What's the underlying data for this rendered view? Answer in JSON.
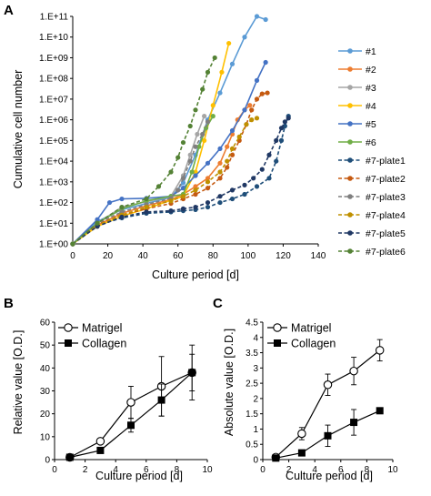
{
  "panel_letters": [
    "A",
    "B",
    "C"
  ],
  "chart_data": [
    {
      "panel": "A",
      "type": "line",
      "xlabel": "Culture period [d]",
      "ylabel": "Cumulative cell number",
      "xlim": [
        0,
        140
      ],
      "xticks": [
        "0",
        "20",
        "40",
        "60",
        "80",
        "100",
        "120",
        "140"
      ],
      "y_scale": "log10",
      "ylim": [
        1,
        100000000000
      ],
      "yticks": [
        "1.E+00",
        "1.E+01",
        "1.E+02",
        "1.E+03",
        "1.E+04",
        "1.E+05",
        "1.E+06",
        "1.E+07",
        "1.E+08",
        "1.E+09",
        "1.E+10",
        "1.E+11"
      ],
      "legend_position": "right",
      "series": [
        {
          "name": "#1",
          "color": "#5b9bd5",
          "dashed": false,
          "x": [
            0,
            14,
            28,
            42,
            56,
            63,
            70,
            77,
            84,
            91,
            98,
            105,
            110
          ],
          "y": [
            1,
            12,
            45,
            90,
            180,
            900,
            20000,
            1000000,
            20000000,
            500000000,
            10000000000,
            100000000000,
            70000000000
          ]
        },
        {
          "name": "#2",
          "color": "#ed7d31",
          "dashed": false,
          "x": [
            0,
            14,
            28,
            42,
            56,
            63,
            70,
            77,
            84,
            88,
            91,
            94,
            98,
            101
          ],
          "y": [
            1,
            8,
            30,
            70,
            140,
            250,
            600,
            1500,
            8000,
            50000,
            200000,
            1000000,
            3000000,
            5000000
          ]
        },
        {
          "name": "#3",
          "color": "#a5a5a5",
          "dashed": false,
          "x": [
            0,
            14,
            28,
            42,
            56,
            63,
            67,
            71,
            75
          ],
          "y": [
            1,
            10,
            60,
            110,
            200,
            2000,
            20000,
            200000,
            1500000
          ]
        },
        {
          "name": "#4",
          "color": "#ffc000",
          "dashed": false,
          "x": [
            0,
            14,
            28,
            42,
            56,
            63,
            70,
            75,
            80,
            85,
            89
          ],
          "y": [
            1,
            7,
            22,
            50,
            130,
            200,
            3000,
            100000,
            5000000,
            200000000,
            5000000000
          ]
        },
        {
          "name": "#5",
          "color": "#4472c4",
          "dashed": false,
          "x": [
            0,
            14,
            21,
            28,
            42,
            56,
            63,
            70,
            77,
            84,
            91,
            98,
            105,
            110
          ],
          "y": [
            1,
            15,
            100,
            150,
            160,
            200,
            500,
            2000,
            8000,
            40000,
            300000,
            3000000,
            80000000,
            600000000
          ]
        },
        {
          "name": "#6",
          "color": "#70ad47",
          "dashed": false,
          "x": [
            0,
            14,
            28,
            42,
            56,
            63,
            68,
            72,
            76,
            80
          ],
          "y": [
            1,
            10,
            50,
            120,
            200,
            250,
            3000,
            50000,
            400000,
            1500000
          ]
        },
        {
          "name": "#7-plate1",
          "color": "#1f4e79",
          "dashed": true,
          "x": [
            0,
            14,
            28,
            42,
            56,
            63,
            70,
            77,
            84,
            91,
            98,
            105,
            112,
            116,
            119,
            121,
            123
          ],
          "y": [
            1,
            8,
            18,
            30,
            35,
            40,
            45,
            60,
            100,
            150,
            250,
            600,
            1500,
            10000,
            100000,
            500000,
            1500000
          ]
        },
        {
          "name": "#7-plate2",
          "color": "#c55a11",
          "dashed": true,
          "x": [
            0,
            14,
            28,
            42,
            56,
            63,
            70,
            77,
            84,
            88,
            91,
            95,
            99,
            102,
            105,
            108,
            111
          ],
          "y": [
            1,
            9,
            25,
            50,
            90,
            150,
            250,
            500,
            1500,
            5000,
            20000,
            100000,
            600000,
            3000000,
            10000000,
            18000000,
            20000000
          ]
        },
        {
          "name": "#7-plate3",
          "color": "#7f7f7f",
          "dashed": true,
          "x": [
            0,
            14,
            28,
            42,
            56,
            60,
            63,
            67,
            70,
            74,
            77
          ],
          "y": [
            1,
            10,
            35,
            80,
            160,
            400,
            1500,
            10000,
            50000,
            200000,
            800000
          ]
        },
        {
          "name": "#7-plate4",
          "color": "#bf9000",
          "dashed": true,
          "x": [
            0,
            14,
            28,
            42,
            56,
            63,
            70,
            77,
            84,
            88,
            91,
            95,
            99,
            102,
            105
          ],
          "y": [
            1,
            8,
            25,
            60,
            120,
            200,
            400,
            1000,
            3000,
            10000,
            40000,
            150000,
            600000,
            1000000,
            1200000
          ]
        },
        {
          "name": "#7-plate5",
          "color": "#203864",
          "dashed": true,
          "x": [
            0,
            14,
            28,
            42,
            56,
            63,
            70,
            77,
            84,
            91,
            98,
            103,
            108,
            112,
            116,
            119,
            121,
            123
          ],
          "y": [
            1,
            7,
            20,
            35,
            40,
            50,
            60,
            100,
            200,
            400,
            700,
            1500,
            4000,
            20000,
            100000,
            400000,
            800000,
            1200000
          ]
        },
        {
          "name": "#7-plate6",
          "color": "#548235",
          "dashed": true,
          "x": [
            0,
            14,
            28,
            42,
            49,
            56,
            60,
            63,
            67,
            70,
            74,
            77,
            81
          ],
          "y": [
            1,
            10,
            60,
            150,
            600,
            3000,
            15000,
            80000,
            500000,
            3000000,
            30000000,
            200000000,
            1000000000
          ]
        }
      ]
    },
    {
      "panel": "B",
      "type": "line",
      "xlabel": "Culture period [d]",
      "ylabel": "Relative value [O.D.]",
      "xlim": [
        0,
        10
      ],
      "xticks": [
        "0",
        "2",
        "4",
        "6",
        "8",
        "10"
      ],
      "ylim": [
        0,
        60
      ],
      "yticks": [
        "0",
        "10",
        "20",
        "30",
        "40",
        "50",
        "60"
      ],
      "legend_position": "top-left",
      "series": [
        {
          "name": "Matrigel",
          "marker": "open-circle",
          "x": [
            1,
            3,
            5,
            7,
            9
          ],
          "y": [
            1,
            8,
            25,
            32,
            38
          ],
          "err": [
            0.5,
            1,
            7,
            13,
            12
          ]
        },
        {
          "name": "Collagen",
          "marker": "filled-square",
          "x": [
            1,
            3,
            5,
            7,
            9
          ],
          "y": [
            1,
            4,
            15,
            26,
            38
          ],
          "err": [
            0.5,
            1,
            3,
            7,
            8
          ]
        }
      ]
    },
    {
      "panel": "C",
      "type": "line",
      "xlabel": "Culture period [d]",
      "ylabel": "Absolute value [O.D.]",
      "xlim": [
        0,
        10
      ],
      "xticks": [
        "0",
        "2",
        "4",
        "6",
        "8",
        "10"
      ],
      "ylim": [
        0,
        4.5
      ],
      "yticks": [
        "0",
        "0.5",
        "1",
        "1.5",
        "2",
        "2.5",
        "3",
        "3.5",
        "4",
        "4.5"
      ],
      "legend_position": "top-left",
      "series": [
        {
          "name": "Matrigel",
          "marker": "open-circle",
          "x": [
            1,
            3,
            5,
            7,
            9
          ],
          "y": [
            0.08,
            0.85,
            2.45,
            2.9,
            3.58
          ],
          "err": [
            0.05,
            0.2,
            0.35,
            0.45,
            0.35
          ]
        },
        {
          "name": "Collagen",
          "marker": "filled-square",
          "x": [
            1,
            3,
            5,
            7,
            9
          ],
          "y": [
            0.05,
            0.22,
            0.78,
            1.22,
            1.6
          ],
          "err": [
            0.03,
            0.05,
            0.35,
            0.42,
            0.08
          ]
        }
      ]
    }
  ]
}
